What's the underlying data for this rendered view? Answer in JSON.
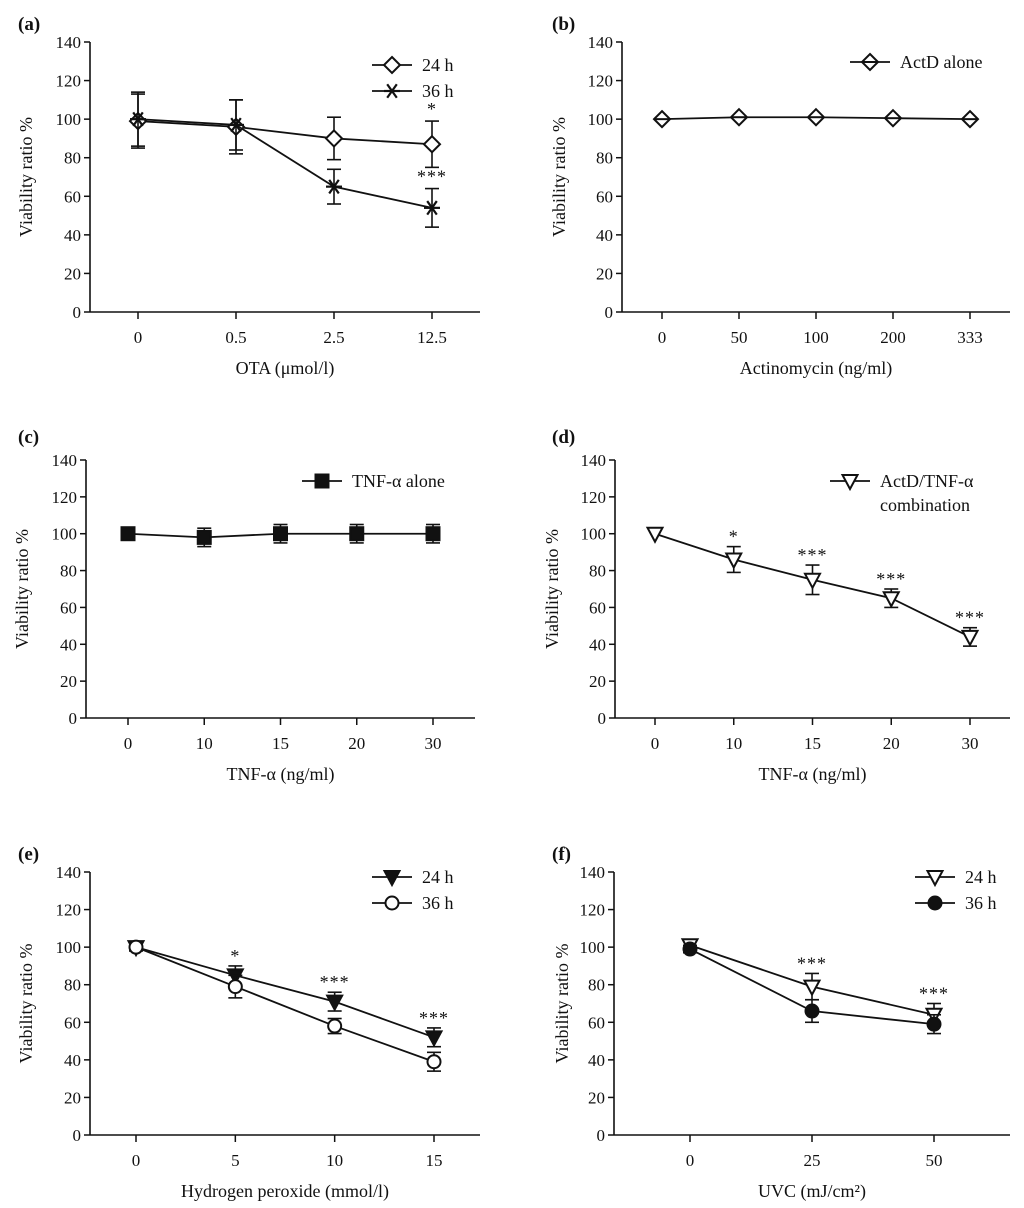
{
  "chart_data": [
    {
      "panel": "(a)",
      "type": "line",
      "categories": [
        "0",
        "0.5",
        "2.5",
        "12.5"
      ],
      "xlabel": "OTA (μmol/l)",
      "ylabel": "Viability ratio %",
      "ylim": [
        0,
        140
      ],
      "yticks": [
        0,
        20,
        40,
        60,
        80,
        100,
        120,
        140
      ],
      "legend_position": "top-right",
      "series": [
        {
          "name": "24 h",
          "marker": "diamond-open",
          "values": [
            99,
            96,
            90,
            87
          ],
          "errors": [
            14,
            14,
            11,
            12
          ]
        },
        {
          "name": "36 h",
          "marker": "asterisk",
          "values": [
            100,
            97,
            65,
            54
          ],
          "errors": [
            14,
            13,
            9,
            10
          ]
        }
      ],
      "annotations": [
        {
          "index": 3,
          "value": 100,
          "text": "*"
        },
        {
          "index": 3,
          "value": 65,
          "text": "***"
        }
      ]
    },
    {
      "panel": "(b)",
      "type": "line",
      "categories": [
        "0",
        "50",
        "100",
        "200",
        "333"
      ],
      "xlabel": "Actinomycin (ng/ml)",
      "ylabel": "Viability ratio %",
      "ylim": [
        0,
        140
      ],
      "yticks": [
        0,
        20,
        40,
        60,
        80,
        100,
        120,
        140
      ],
      "legend_position": "top-right",
      "series": [
        {
          "name": "ActD alone",
          "marker": "diamond-cross",
          "values": [
            100,
            101,
            101,
            100.5,
            100
          ],
          "errors": [
            0,
            0,
            0,
            0,
            0
          ]
        }
      ],
      "annotations": []
    },
    {
      "panel": "(c)",
      "type": "line",
      "categories": [
        "0",
        "10",
        "15",
        "20",
        "30"
      ],
      "xlabel": "TNF-α (ng/ml)",
      "ylabel": "Viability ratio %",
      "ylim": [
        0,
        140
      ],
      "yticks": [
        0,
        20,
        40,
        60,
        80,
        100,
        120,
        140
      ],
      "legend_position": "top-right",
      "series": [
        {
          "name": "TNF-α alone",
          "marker": "square-filled",
          "values": [
            100,
            98,
            100,
            100,
            100
          ],
          "errors": [
            0,
            5,
            5,
            5,
            5
          ]
        }
      ],
      "annotations": []
    },
    {
      "panel": "(d)",
      "type": "line",
      "categories": [
        "0",
        "10",
        "15",
        "20",
        "30"
      ],
      "xlabel": "TNF-α (ng/ml)",
      "ylabel": "Viability ratio %",
      "ylim": [
        0,
        140
      ],
      "yticks": [
        0,
        20,
        40,
        60,
        80,
        100,
        120,
        140
      ],
      "legend_position": "top-right",
      "series": [
        {
          "name": "ActD/TNF-α combination",
          "legend_lines": [
            "ActD/TNF-α",
            "combination"
          ],
          "marker": "triangle-down-open",
          "values": [
            100,
            86,
            75,
            65,
            44
          ],
          "errors": [
            0,
            7,
            8,
            5,
            5
          ]
        }
      ],
      "annotations": [
        {
          "index": 1,
          "value": 93,
          "text": "*"
        },
        {
          "index": 2,
          "value": 83,
          "text": "***"
        },
        {
          "index": 3,
          "value": 70,
          "text": "***"
        },
        {
          "index": 4,
          "value": 49,
          "text": "***"
        }
      ]
    },
    {
      "panel": "(e)",
      "type": "line",
      "categories": [
        "0",
        "5",
        "10",
        "15"
      ],
      "xlabel": "Hydrogen peroxide (mmol/l)",
      "ylabel": "Viability ratio %",
      "ylim": [
        0,
        140
      ],
      "yticks": [
        0,
        20,
        40,
        60,
        80,
        100,
        120,
        140
      ],
      "legend_position": "top-right",
      "series": [
        {
          "name": "24 h",
          "marker": "triangle-down-filled",
          "values": [
            100,
            85,
            71,
            52
          ],
          "errors": [
            2,
            5,
            5,
            5
          ]
        },
        {
          "name": "36 h",
          "marker": "circle-open",
          "values": [
            100,
            79,
            58,
            39
          ],
          "errors": [
            2,
            6,
            4,
            5
          ]
        }
      ],
      "annotations": [
        {
          "index": 1,
          "value": 90,
          "text": "*"
        },
        {
          "index": 2,
          "value": 76,
          "text": "***"
        },
        {
          "index": 3,
          "value": 57,
          "text": "***"
        }
      ]
    },
    {
      "panel": "(f)",
      "type": "line",
      "categories": [
        "0",
        "25",
        "50"
      ],
      "xlabel": "UVC (mJ/cm²)",
      "ylabel": "Viability ratio %",
      "ylim": [
        0,
        140
      ],
      "yticks": [
        0,
        20,
        40,
        60,
        80,
        100,
        120,
        140
      ],
      "legend_position": "top-right",
      "series": [
        {
          "name": "24 h",
          "marker": "triangle-down-open",
          "values": [
            101,
            79,
            64
          ],
          "errors": [
            2,
            7,
            6
          ]
        },
        {
          "name": "36 h",
          "marker": "circle-filled",
          "values": [
            99,
            66,
            59
          ],
          "errors": [
            2,
            6,
            5
          ]
        }
      ],
      "annotations": [
        {
          "index": 1,
          "value": 86,
          "text": "***"
        },
        {
          "index": 2,
          "value": 70,
          "text": "***"
        }
      ]
    }
  ]
}
